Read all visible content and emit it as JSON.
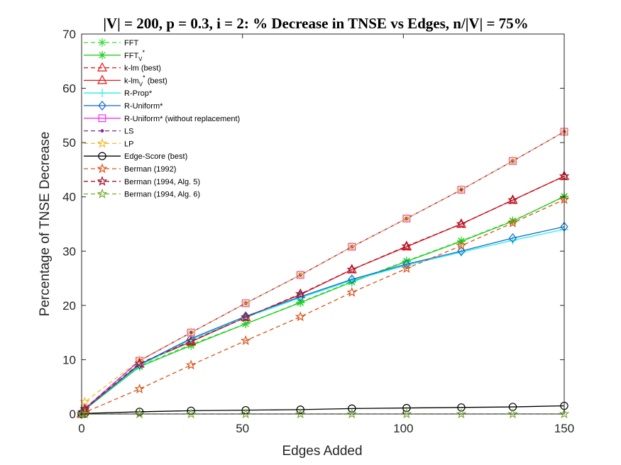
{
  "chart_data": {
    "type": "line",
    "title": "|V| = 200, p = 0.3, i = 2: % Decrease in TNSE vs Edges, n/|V| = 75%",
    "xlabel": "Edges Added",
    "ylabel": "Percentage of TNSE Decrease",
    "xlim": [
      0,
      150
    ],
    "ylim": [
      0,
      70
    ],
    "xticks": [
      0,
      50,
      100,
      150
    ],
    "yticks": [
      0,
      10,
      20,
      30,
      40,
      50,
      60,
      70
    ],
    "xtick_labels": [
      "0",
      "50",
      "100",
      "150"
    ],
    "ytick_labels": [
      "0",
      "10",
      "20",
      "30",
      "40",
      "50",
      "60",
      "70"
    ],
    "grid": false,
    "legend_position": "top-left",
    "x": [
      0,
      1,
      18,
      34,
      51,
      68,
      84,
      101,
      118,
      134,
      150
    ],
    "series": [
      {
        "name": "FFT",
        "legend_main": "FFT",
        "legend_sub": "",
        "legend_sup": "",
        "color": "#33dd33",
        "dash": "6,4",
        "marker": "asterisk",
        "values": [
          0,
          0.8,
          8.8,
          12.8,
          16.6,
          20.6,
          24.4,
          28.2,
          31.9,
          35.6,
          40.0
        ]
      },
      {
        "name": "FFT_V*",
        "legend_main": "FFT",
        "legend_sub": "V",
        "legend_sup": "*",
        "color": "#22cc22",
        "dash": "",
        "marker": "asterisk",
        "values": [
          0,
          0.8,
          8.7,
          12.6,
          16.6,
          20.5,
          24.3,
          28.1,
          31.8,
          35.5,
          40.1
        ]
      },
      {
        "name": "k-lm (best)",
        "legend_main": "k-lm (best)",
        "legend_sub": "",
        "legend_sup": "",
        "color": "#ee1111",
        "dash": "6,4",
        "marker": "triangle",
        "values": [
          0,
          0.9,
          9.3,
          13.4,
          17.8,
          22.1,
          26.6,
          30.9,
          35.0,
          39.4,
          43.8
        ]
      },
      {
        "name": "k-lm_V* (best)",
        "legend_main": "k-lm",
        "legend_sub": "V",
        "legend_sup": "*",
        "legend_tail": " (best)",
        "color": "#ee1111",
        "dash": "",
        "marker": "triangle",
        "values": [
          0,
          0.9,
          9.2,
          13.3,
          17.8,
          22.0,
          26.6,
          30.8,
          35.0,
          39.4,
          43.8
        ]
      },
      {
        "name": "R-Prop*",
        "legend_main": "R-Prop*",
        "legend_sub": "",
        "legend_sup": "",
        "color": "#22eeee",
        "dash": "",
        "marker": "plus",
        "values": [
          0,
          0.9,
          8.9,
          13.7,
          17.8,
          21.4,
          24.6,
          27.4,
          29.8,
          32.0,
          34.0
        ]
      },
      {
        "name": "R-Uniform*",
        "legend_main": "R-Uniform*",
        "legend_sub": "",
        "legend_sup": "",
        "color": "#1166cc",
        "dash": "",
        "marker": "diamond",
        "values": [
          0,
          0.9,
          9.1,
          13.9,
          18.0,
          21.6,
          24.8,
          27.6,
          30.0,
          32.4,
          34.5
        ]
      },
      {
        "name": "R-Uniform* (without replacement)",
        "legend_main": "R-Uniform* (without replacement)",
        "legend_sub": "",
        "legend_sup": "",
        "color": "#ee33ee",
        "dash": "",
        "marker": "square",
        "values": [
          0,
          1.0,
          9.8,
          15.0,
          20.4,
          25.6,
          30.8,
          36.0,
          41.3,
          46.6,
          52.0
        ]
      },
      {
        "name": "LS",
        "legend_main": "LS",
        "legend_sub": "",
        "legend_sup": "",
        "color": "#7e2f8e",
        "dash": "6,4",
        "marker": "dot",
        "values": [
          0,
          1.0,
          9.8,
          15.0,
          20.4,
          25.6,
          30.8,
          36.0,
          41.3,
          46.6,
          52.0
        ]
      },
      {
        "name": "LP",
        "legend_main": "LP",
        "legend_sub": "",
        "legend_sup": "",
        "color": "#eebb33",
        "dash": "6,4",
        "marker": "star",
        "values": [
          0,
          2.2,
          9.9,
          15.0,
          20.4,
          25.6,
          30.8,
          36.0,
          41.3,
          46.6,
          52.0
        ]
      },
      {
        "name": "Edge-Score (best)",
        "legend_main": "Edge-Score (best)",
        "legend_sub": "",
        "legend_sup": "",
        "color": "#000000",
        "dash": "",
        "marker": "circle",
        "values": [
          0,
          0.1,
          0.4,
          0.6,
          0.7,
          0.8,
          1.0,
          1.1,
          1.2,
          1.3,
          1.5
        ]
      },
      {
        "name": "Berman (1992)",
        "legend_main": "Berman (1992)",
        "legend_sub": "",
        "legend_sup": "",
        "color": "#d95319",
        "dash": "6,4",
        "marker": "star",
        "values": [
          0,
          0.3,
          4.6,
          9.0,
          13.5,
          17.9,
          22.4,
          26.8,
          31.0,
          35.2,
          39.5
        ]
      },
      {
        "name": "Berman (1994, Alg. 5)",
        "legend_main": "Berman (1994, Alg. 5)",
        "legend_sub": "",
        "legend_sup": "",
        "color": "#a2142f",
        "dash": "6,4",
        "marker": "star",
        "values": [
          0,
          0.9,
          9.3,
          13.4,
          17.8,
          22.1,
          26.6,
          30.9,
          35.0,
          39.4,
          43.8
        ]
      },
      {
        "name": "Berman (1994, Alg. 6)",
        "legend_main": "Berman (1994, Alg. 6)",
        "legend_sub": "",
        "legend_sup": "",
        "color": "#77ac30",
        "dash": "6,4",
        "marker": "star",
        "values": [
          0,
          0,
          0,
          0,
          0,
          0,
          0,
          0,
          0,
          0,
          0
        ]
      }
    ]
  }
}
